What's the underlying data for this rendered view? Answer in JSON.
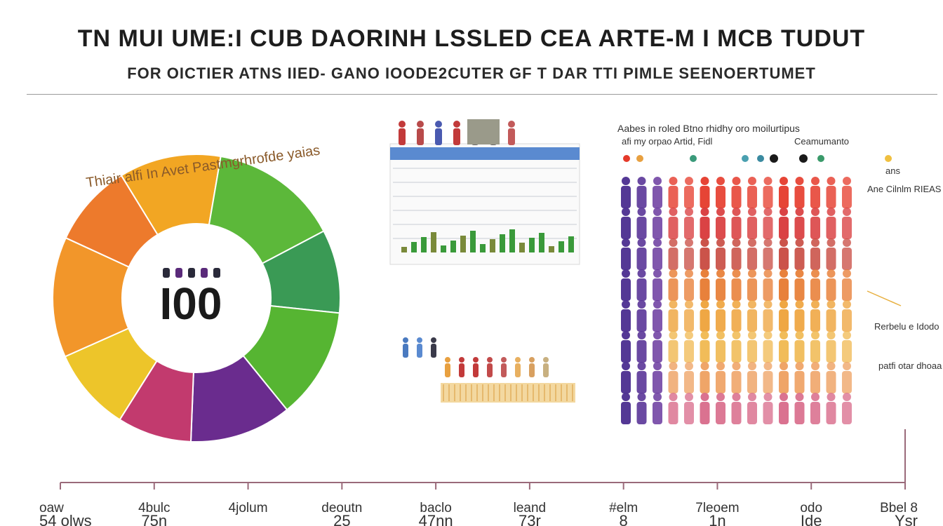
{
  "header": {
    "title": "TN MUI UME:I CUB DAORINH LSSLED CEA ARTE-M I MCB TUDUT",
    "subtitle": "FOR OICTIER ATNS IIED- GANO IOODE2CUTER GF T DAR TTI PIMLE SEENOERTUMET"
  },
  "chart_data": [
    {
      "type": "pie",
      "title": "Thiair alfi In Avet Pastmgrhrofde yaias",
      "center_label": "I00",
      "slices": [
        {
          "value": 11,
          "color": "#f2a623"
        },
        {
          "value": 14,
          "color": "#5cb83a"
        },
        {
          "value": 9,
          "color": "#3a9a55"
        },
        {
          "value": 12,
          "color": "#56b532"
        },
        {
          "value": 11,
          "color": "#6a2c8e"
        },
        {
          "value": 8,
          "color": "#c23a6e"
        },
        {
          "value": 9,
          "color": "#edc52a"
        },
        {
          "value": 13,
          "color": "#f2962a"
        },
        {
          "value": 9,
          "color": "#ed7a2c"
        }
      ]
    },
    {
      "type": "table",
      "title": "",
      "rows": 2
    },
    {
      "type": "heatmap",
      "title": "Aabes in roled Btno rhidhy oro moilurtipus",
      "subtitle": "afi my orpao Artid, Fidl",
      "legend_label": "Ceamumanto",
      "side_labels": [
        "ans",
        "Ane Cilnlm RIEAS",
        "Rerbelu e Idodo",
        "patfi otar dhoaa"
      ],
      "columns": 15,
      "rows": 8,
      "column_colors": [
        "#4b2d8f",
        "#5a3598",
        "#6a3a9f",
        "#e8402a",
        "#ea452c",
        "#ec4a2c",
        "#ed4f2e",
        "#ee542f",
        "#ef5a30",
        "#f06033",
        "#f16635",
        "#f26c37",
        "#f3723a",
        "#f4783c",
        "#f57e3e"
      ],
      "row_tints": [
        "#e53a2a",
        "#d8383a",
        "#c84a40",
        "#e77a30",
        "#eea23a",
        "#f0b850",
        "#eea060",
        "#d86a8a"
      ]
    }
  ],
  "axis": {
    "ticks": [
      {
        "top": "oaw",
        "bottom": "54 olws"
      },
      {
        "top": "4bulc",
        "bottom": "75n"
      },
      {
        "top": "4jolum",
        "bottom": ""
      },
      {
        "top": "deoutn",
        "bottom": "25"
      },
      {
        "top": "baclo",
        "bottom": "47nn"
      },
      {
        "top": "leand",
        "bottom": "73r"
      },
      {
        "top": "#elm",
        "bottom": "8"
      },
      {
        "top": "7leoem",
        "bottom": "1n"
      },
      {
        "top": "odo",
        "bottom": "Ide"
      },
      {
        "top": "Bbel 8",
        "bottom": "Ysr"
      }
    ]
  },
  "colors": {
    "axis": "#9a6a7a",
    "rule": "#9a9a9a"
  }
}
